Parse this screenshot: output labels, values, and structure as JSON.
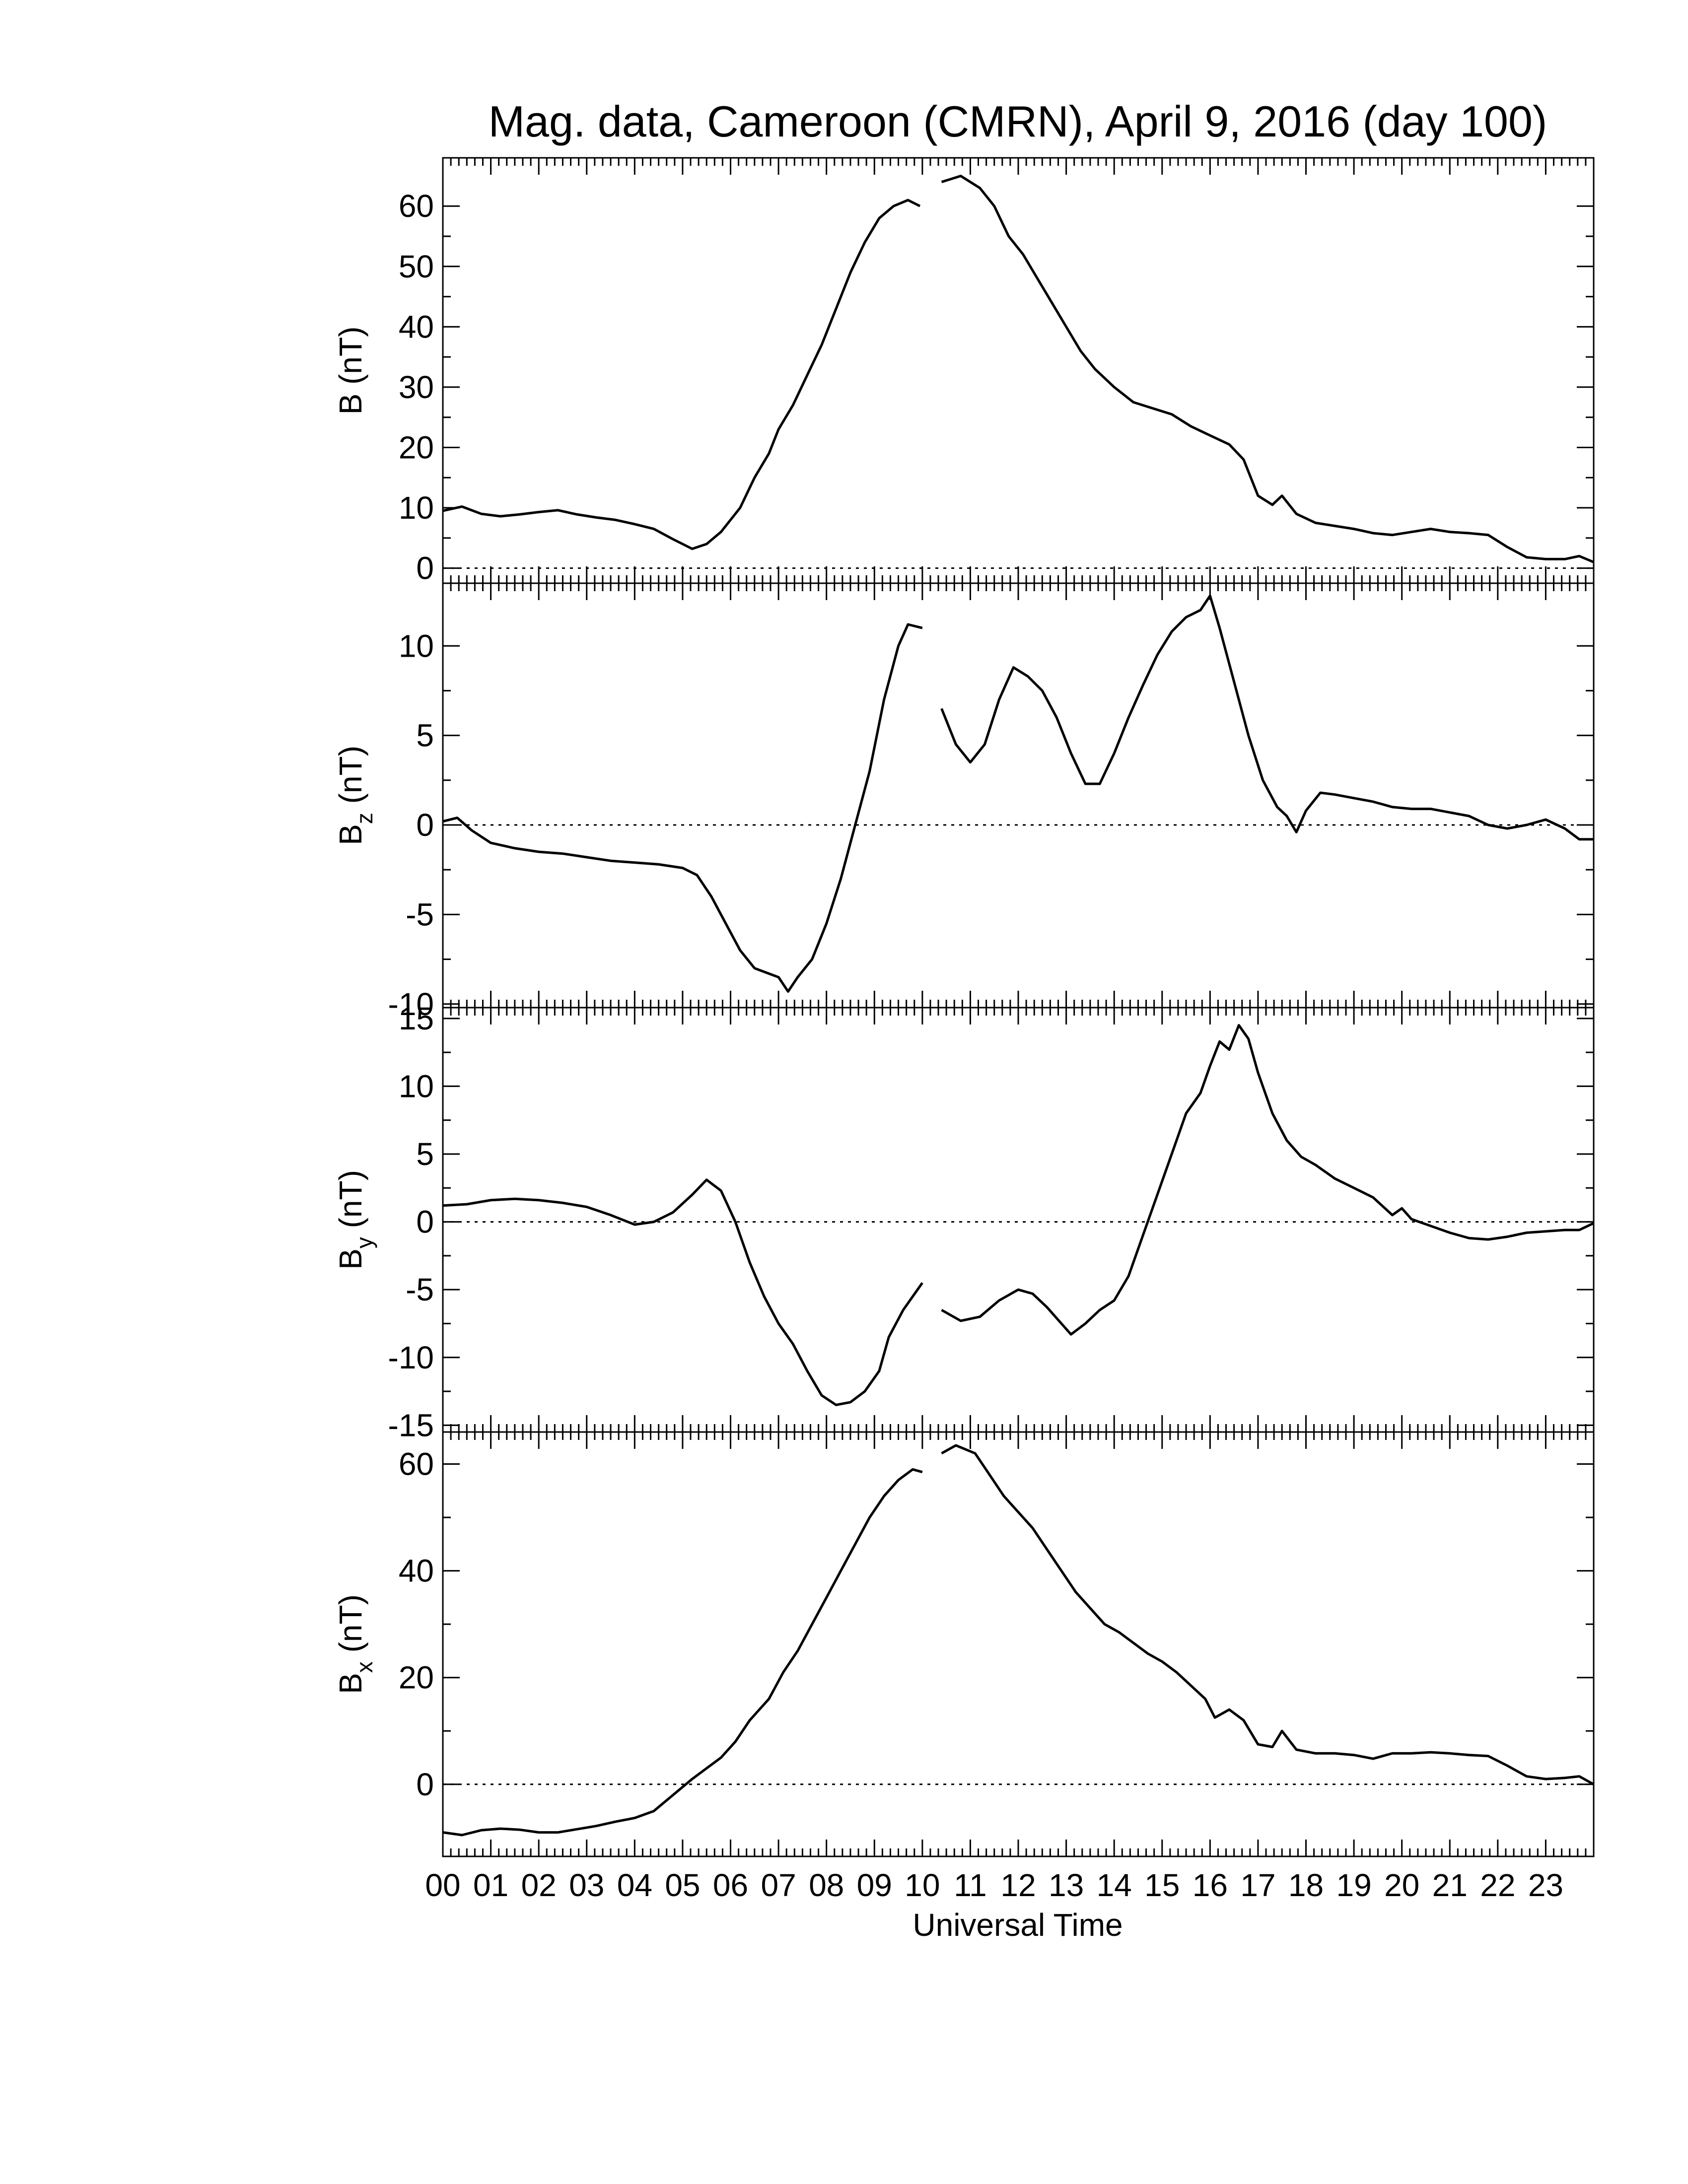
{
  "figure": {
    "title": "Mag. data, Cameroon (CMRN), April 9, 2016 (day 100)",
    "xlabel": "Universal Time",
    "xticks": [
      "00",
      "01",
      "02",
      "03",
      "04",
      "05",
      "06",
      "07",
      "08",
      "09",
      "10",
      "11",
      "12",
      "13",
      "14",
      "15",
      "16",
      "17",
      "18",
      "19",
      "20",
      "21",
      "22",
      "23"
    ]
  },
  "chart_data": [
    {
      "type": "line",
      "ylabel": "B (nT)",
      "ylabel_main": "B",
      "ylabel_sub": "",
      "ylabel_unit": " (nT)",
      "ylim": [
        -2.5,
        68
      ],
      "yticks": [
        0,
        10,
        20,
        30,
        40,
        50,
        60
      ],
      "zero_line": true,
      "xlim": [
        0,
        24
      ],
      "segments": [
        [
          [
            0,
            9.5
          ],
          [
            0.4,
            10.2
          ],
          [
            0.8,
            9
          ],
          [
            1.2,
            8.6
          ],
          [
            1.6,
            8.9
          ],
          [
            2,
            9.3
          ],
          [
            2.4,
            9.6
          ],
          [
            2.8,
            8.9
          ],
          [
            3.2,
            8.4
          ],
          [
            3.6,
            8
          ],
          [
            4,
            7.3
          ],
          [
            4.4,
            6.5
          ],
          [
            4.8,
            4.8
          ],
          [
            5.2,
            3.2
          ],
          [
            5.5,
            4
          ],
          [
            5.8,
            6
          ],
          [
            6.2,
            10
          ],
          [
            6.5,
            15
          ],
          [
            6.8,
            19
          ],
          [
            7,
            23
          ],
          [
            7.3,
            27
          ],
          [
            7.6,
            32
          ],
          [
            7.9,
            37
          ],
          [
            8.2,
            43
          ],
          [
            8.5,
            49
          ],
          [
            8.8,
            54
          ],
          [
            9.1,
            58
          ],
          [
            9.4,
            60
          ],
          [
            9.7,
            61
          ],
          [
            9.95,
            60
          ]
        ],
        [
          [
            10.4,
            64
          ],
          [
            10.8,
            65
          ],
          [
            11.2,
            63
          ],
          [
            11.5,
            60
          ],
          [
            11.8,
            55
          ],
          [
            12.1,
            52
          ],
          [
            12.4,
            48
          ],
          [
            12.7,
            44
          ],
          [
            13,
            40
          ],
          [
            13.3,
            36
          ],
          [
            13.6,
            33
          ],
          [
            14,
            30
          ],
          [
            14.4,
            27.5
          ],
          [
            14.8,
            26.5
          ],
          [
            15.2,
            25.5
          ],
          [
            15.6,
            23.5
          ],
          [
            16,
            22
          ],
          [
            16.4,
            20.5
          ],
          [
            16.7,
            18
          ],
          [
            17,
            12
          ],
          [
            17.3,
            10.5
          ],
          [
            17.5,
            12
          ],
          [
            17.8,
            9
          ],
          [
            18.2,
            7.5
          ],
          [
            18.6,
            7
          ],
          [
            19,
            6.5
          ],
          [
            19.4,
            5.8
          ],
          [
            19.8,
            5.5
          ],
          [
            20.2,
            6
          ],
          [
            20.6,
            6.5
          ],
          [
            21,
            6
          ],
          [
            21.4,
            5.8
          ],
          [
            21.8,
            5.5
          ],
          [
            22.2,
            3.5
          ],
          [
            22.6,
            1.8
          ],
          [
            23,
            1.5
          ],
          [
            23.4,
            1.5
          ],
          [
            23.7,
            2
          ],
          [
            24,
            1
          ]
        ]
      ]
    },
    {
      "type": "line",
      "ylabel": "Bz (nT)",
      "ylabel_main": "B",
      "ylabel_sub": "z",
      "ylabel_unit": " (nT)",
      "ylim": [
        -10.2,
        13.5
      ],
      "yticks": [
        -10,
        -5,
        0,
        5,
        10
      ],
      "ytick_labels": [
        "-10",
        "-5",
        "0",
        "5",
        "10"
      ],
      "zero_line": true,
      "xlim": [
        0,
        24
      ],
      "segments": [
        [
          [
            0,
            0.2
          ],
          [
            0.3,
            0.4
          ],
          [
            0.6,
            -0.3
          ],
          [
            1,
            -1
          ],
          [
            1.5,
            -1.3
          ],
          [
            2,
            -1.5
          ],
          [
            2.5,
            -1.6
          ],
          [
            3,
            -1.8
          ],
          [
            3.5,
            -2
          ],
          [
            4,
            -2.1
          ],
          [
            4.5,
            -2.2
          ],
          [
            5,
            -2.4
          ],
          [
            5.3,
            -2.8
          ],
          [
            5.6,
            -4
          ],
          [
            5.9,
            -5.5
          ],
          [
            6.2,
            -7
          ],
          [
            6.5,
            -8
          ],
          [
            6.8,
            -8.3
          ],
          [
            7,
            -8.5
          ],
          [
            7.2,
            -9.3
          ],
          [
            7.4,
            -8.5
          ],
          [
            7.7,
            -7.5
          ],
          [
            8,
            -5.5
          ],
          [
            8.3,
            -3
          ],
          [
            8.6,
            0
          ],
          [
            8.9,
            3
          ],
          [
            9.2,
            7
          ],
          [
            9.5,
            10
          ],
          [
            9.7,
            11.2
          ],
          [
            10,
            11
          ]
        ],
        [
          [
            10.4,
            6.5
          ],
          [
            10.7,
            4.5
          ],
          [
            11,
            3.5
          ],
          [
            11.3,
            4.5
          ],
          [
            11.6,
            7
          ],
          [
            11.9,
            8.8
          ],
          [
            12.2,
            8.3
          ],
          [
            12.5,
            7.5
          ],
          [
            12.8,
            6
          ],
          [
            13.1,
            4
          ],
          [
            13.4,
            2.3
          ],
          [
            13.7,
            2.3
          ],
          [
            14,
            4
          ],
          [
            14.3,
            6
          ],
          [
            14.6,
            7.8
          ],
          [
            14.9,
            9.5
          ],
          [
            15.2,
            10.8
          ],
          [
            15.5,
            11.6
          ],
          [
            15.8,
            12
          ],
          [
            16,
            12.8
          ],
          [
            16.2,
            11
          ],
          [
            16.5,
            8
          ],
          [
            16.8,
            5
          ],
          [
            17.1,
            2.5
          ],
          [
            17.4,
            1
          ],
          [
            17.6,
            0.5
          ],
          [
            17.8,
            -0.4
          ],
          [
            18,
            0.8
          ],
          [
            18.3,
            1.8
          ],
          [
            18.6,
            1.7
          ],
          [
            19,
            1.5
          ],
          [
            19.4,
            1.3
          ],
          [
            19.8,
            1
          ],
          [
            20.2,
            0.9
          ],
          [
            20.6,
            0.9
          ],
          [
            21,
            0.7
          ],
          [
            21.4,
            0.5
          ],
          [
            21.8,
            0
          ],
          [
            22.2,
            -0.2
          ],
          [
            22.6,
            0
          ],
          [
            23,
            0.3
          ],
          [
            23.4,
            -0.2
          ],
          [
            23.7,
            -0.8
          ],
          [
            24,
            -0.8
          ]
        ]
      ]
    },
    {
      "type": "line",
      "ylabel": "By (nT)",
      "ylabel_main": "B",
      "ylabel_sub": "y",
      "ylabel_unit": " (nT)",
      "ylim": [
        -15.5,
        15.8
      ],
      "yticks": [
        -15,
        -10,
        -5,
        0,
        5,
        10,
        15
      ],
      "ytick_labels": [
        "-15",
        "-10",
        "-5",
        "0",
        "5",
        "10",
        "15"
      ],
      "zero_line": true,
      "xlim": [
        0,
        24
      ],
      "segments": [
        [
          [
            0,
            1.2
          ],
          [
            0.5,
            1.3
          ],
          [
            1,
            1.6
          ],
          [
            1.5,
            1.7
          ],
          [
            2,
            1.6
          ],
          [
            2.5,
            1.4
          ],
          [
            3,
            1.1
          ],
          [
            3.5,
            0.5
          ],
          [
            4,
            -0.2
          ],
          [
            4.4,
            0
          ],
          [
            4.8,
            0.7
          ],
          [
            5.2,
            2
          ],
          [
            5.5,
            3.1
          ],
          [
            5.8,
            2.3
          ],
          [
            6.1,
            0
          ],
          [
            6.4,
            -3
          ],
          [
            6.7,
            -5.5
          ],
          [
            7,
            -7.5
          ],
          [
            7.3,
            -9
          ],
          [
            7.6,
            -11
          ],
          [
            7.9,
            -12.8
          ],
          [
            8.2,
            -13.5
          ],
          [
            8.5,
            -13.3
          ],
          [
            8.8,
            -12.5
          ],
          [
            9.1,
            -11
          ],
          [
            9.3,
            -8.5
          ],
          [
            9.6,
            -6.5
          ],
          [
            9.8,
            -5.5
          ],
          [
            10,
            -4.5
          ]
        ],
        [
          [
            10.4,
            -6.5
          ],
          [
            10.8,
            -7.3
          ],
          [
            11.2,
            -7
          ],
          [
            11.6,
            -5.8
          ],
          [
            12,
            -5
          ],
          [
            12.3,
            -5.3
          ],
          [
            12.6,
            -6.3
          ],
          [
            12.9,
            -7.5
          ],
          [
            13.1,
            -8.3
          ],
          [
            13.4,
            -7.5
          ],
          [
            13.7,
            -6.5
          ],
          [
            14,
            -5.8
          ],
          [
            14.3,
            -4
          ],
          [
            14.6,
            -1
          ],
          [
            14.9,
            2
          ],
          [
            15.2,
            5
          ],
          [
            15.5,
            8
          ],
          [
            15.8,
            9.5
          ],
          [
            16,
            11.5
          ],
          [
            16.2,
            13.3
          ],
          [
            16.4,
            12.7
          ],
          [
            16.6,
            14.5
          ],
          [
            16.8,
            13.5
          ],
          [
            17,
            11
          ],
          [
            17.3,
            8
          ],
          [
            17.6,
            6
          ],
          [
            17.9,
            4.8
          ],
          [
            18.2,
            4.2
          ],
          [
            18.6,
            3.2
          ],
          [
            19,
            2.5
          ],
          [
            19.4,
            1.8
          ],
          [
            19.8,
            0.5
          ],
          [
            20,
            1
          ],
          [
            20.2,
            0.2
          ],
          [
            20.6,
            -0.3
          ],
          [
            21,
            -0.8
          ],
          [
            21.4,
            -1.2
          ],
          [
            21.8,
            -1.3
          ],
          [
            22.2,
            -1.1
          ],
          [
            22.6,
            -0.8
          ],
          [
            23,
            -0.7
          ],
          [
            23.4,
            -0.6
          ],
          [
            23.7,
            -0.6
          ],
          [
            24,
            -0.1
          ]
        ]
      ]
    },
    {
      "type": "line",
      "ylabel": "Bx (nT)",
      "ylabel_main": "B",
      "ylabel_sub": "x",
      "ylabel_unit": " (nT)",
      "ylim": [
        -13.5,
        66
      ],
      "yticks": [
        0,
        20,
        40,
        60
      ],
      "zero_line": true,
      "xlim": [
        0,
        24
      ],
      "segments": [
        [
          [
            0,
            -9
          ],
          [
            0.4,
            -9.5
          ],
          [
            0.8,
            -8.6
          ],
          [
            1.2,
            -8.3
          ],
          [
            1.6,
            -8.5
          ],
          [
            2,
            -9
          ],
          [
            2.4,
            -9
          ],
          [
            2.8,
            -8.4
          ],
          [
            3.2,
            -7.8
          ],
          [
            3.6,
            -7
          ],
          [
            4,
            -6.3
          ],
          [
            4.4,
            -5
          ],
          [
            4.8,
            -2
          ],
          [
            5.2,
            1
          ],
          [
            5.5,
            3
          ],
          [
            5.8,
            5
          ],
          [
            6.1,
            8
          ],
          [
            6.4,
            12
          ],
          [
            6.8,
            16
          ],
          [
            7.1,
            21
          ],
          [
            7.4,
            25
          ],
          [
            7.7,
            30
          ],
          [
            8,
            35
          ],
          [
            8.3,
            40
          ],
          [
            8.6,
            45
          ],
          [
            8.9,
            50
          ],
          [
            9.2,
            54
          ],
          [
            9.5,
            57
          ],
          [
            9.8,
            59
          ],
          [
            10,
            58.5
          ]
        ],
        [
          [
            10.4,
            62
          ],
          [
            10.7,
            63.5
          ],
          [
            11.1,
            62
          ],
          [
            11.4,
            58
          ],
          [
            11.7,
            54
          ],
          [
            12,
            51
          ],
          [
            12.3,
            48
          ],
          [
            12.6,
            44
          ],
          [
            12.9,
            40
          ],
          [
            13.2,
            36
          ],
          [
            13.5,
            33
          ],
          [
            13.8,
            30
          ],
          [
            14.1,
            28.5
          ],
          [
            14.4,
            26.5
          ],
          [
            14.7,
            24.5
          ],
          [
            15,
            23
          ],
          [
            15.3,
            21
          ],
          [
            15.6,
            18.5
          ],
          [
            15.9,
            16
          ],
          [
            16.1,
            12.5
          ],
          [
            16.4,
            14
          ],
          [
            16.7,
            12
          ],
          [
            17,
            7.5
          ],
          [
            17.3,
            7
          ],
          [
            17.5,
            10
          ],
          [
            17.8,
            6.5
          ],
          [
            18.2,
            5.8
          ],
          [
            18.6,
            5.8
          ],
          [
            19,
            5.5
          ],
          [
            19.4,
            4.8
          ],
          [
            19.8,
            5.8
          ],
          [
            20.2,
            5.8
          ],
          [
            20.6,
            6
          ],
          [
            21,
            5.8
          ],
          [
            21.4,
            5.5
          ],
          [
            21.8,
            5.3
          ],
          [
            22.2,
            3.5
          ],
          [
            22.6,
            1.5
          ],
          [
            23,
            1
          ],
          [
            23.4,
            1.2
          ],
          [
            23.7,
            1.5
          ],
          [
            24,
            0
          ]
        ]
      ]
    }
  ]
}
